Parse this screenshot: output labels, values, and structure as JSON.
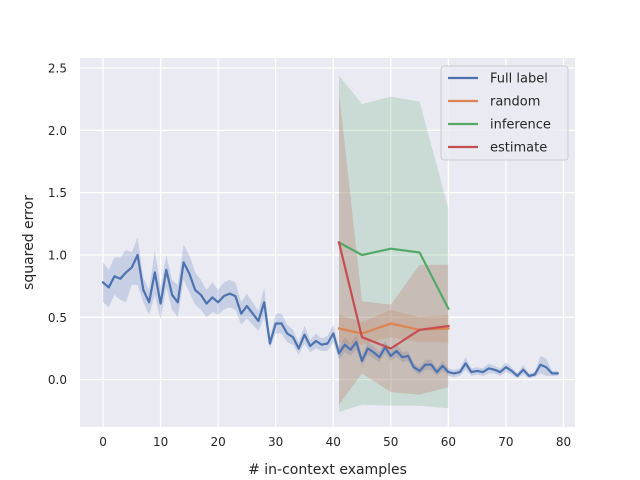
{
  "chart_data": {
    "type": "line",
    "xlabel": "# in-context examples",
    "ylabel": "squared error",
    "xlim": [
      -4,
      82
    ],
    "ylim": [
      -0.38,
      2.58
    ],
    "xticks": [
      0,
      10,
      20,
      30,
      40,
      50,
      60,
      70,
      80
    ],
    "yticks": [
      0.0,
      0.5,
      1.0,
      1.5,
      2.0,
      2.5
    ],
    "ytick_labels": [
      "0.0",
      "0.5",
      "1.0",
      "1.5",
      "2.0",
      "2.5"
    ],
    "grid": true,
    "legend_position": "top-right",
    "series": [
      {
        "name": "Full label",
        "color": "#4c72b0",
        "x": [
          0,
          1,
          2,
          3,
          4,
          5,
          6,
          7,
          8,
          9,
          10,
          11,
          12,
          13,
          14,
          15,
          16,
          17,
          18,
          19,
          20,
          21,
          22,
          23,
          24,
          25,
          26,
          27,
          28,
          29,
          30,
          31,
          32,
          33,
          34,
          35,
          36,
          37,
          38,
          39,
          40,
          41,
          42,
          43,
          44,
          45,
          46,
          47,
          48,
          49,
          50,
          51,
          52,
          53,
          54,
          55,
          56,
          57,
          58,
          59,
          60,
          61,
          62,
          63,
          64,
          65,
          66,
          67,
          68,
          69,
          70,
          71,
          72,
          73,
          74,
          75,
          76,
          77,
          78,
          79
        ],
        "y": [
          0.78,
          0.74,
          0.83,
          0.81,
          0.86,
          0.9,
          1.0,
          0.72,
          0.62,
          0.86,
          0.61,
          0.88,
          0.68,
          0.62,
          0.94,
          0.85,
          0.72,
          0.68,
          0.61,
          0.66,
          0.62,
          0.67,
          0.69,
          0.67,
          0.53,
          0.59,
          0.53,
          0.47,
          0.62,
          0.29,
          0.45,
          0.45,
          0.37,
          0.34,
          0.25,
          0.36,
          0.27,
          0.31,
          0.28,
          0.29,
          0.37,
          0.21,
          0.28,
          0.24,
          0.3,
          0.15,
          0.25,
          0.22,
          0.18,
          0.26,
          0.19,
          0.23,
          0.18,
          0.19,
          0.1,
          0.07,
          0.12,
          0.12,
          0.06,
          0.11,
          0.06,
          0.05,
          0.06,
          0.13,
          0.06,
          0.07,
          0.06,
          0.09,
          0.08,
          0.06,
          0.1,
          0.07,
          0.03,
          0.08,
          0.03,
          0.04,
          0.12,
          0.1,
          0.05,
          0.05
        ],
        "lower": [
          0.62,
          0.58,
          0.68,
          0.64,
          0.62,
          0.76,
          0.76,
          0.62,
          0.52,
          0.68,
          0.48,
          0.74,
          0.56,
          0.5,
          0.8,
          0.7,
          0.6,
          0.56,
          0.5,
          0.54,
          0.52,
          0.56,
          0.58,
          0.56,
          0.44,
          0.49,
          0.44,
          0.39,
          0.5,
          0.25,
          0.37,
          0.37,
          0.3,
          0.28,
          0.2,
          0.29,
          0.22,
          0.25,
          0.23,
          0.23,
          0.3,
          0.16,
          0.22,
          0.19,
          0.24,
          0.11,
          0.2,
          0.17,
          0.14,
          0.21,
          0.15,
          0.18,
          0.14,
          0.15,
          0.07,
          0.04,
          0.08,
          0.08,
          0.03,
          0.07,
          0.03,
          0.02,
          0.03,
          0.08,
          0.03,
          0.04,
          0.03,
          0.05,
          0.05,
          0.03,
          0.06,
          0.04,
          0.01,
          0.04,
          0.01,
          0.02,
          0.05,
          0.03,
          0.03,
          0.03
        ],
        "upper": [
          0.94,
          0.88,
          0.98,
          0.98,
          1.04,
          1.02,
          1.14,
          0.82,
          0.72,
          1.04,
          0.74,
          1.0,
          0.8,
          0.76,
          1.08,
          1.0,
          0.86,
          0.8,
          0.72,
          0.78,
          0.72,
          0.78,
          0.8,
          0.78,
          0.62,
          0.69,
          0.62,
          0.55,
          0.74,
          0.33,
          0.53,
          0.53,
          0.44,
          0.4,
          0.3,
          0.43,
          0.32,
          0.37,
          0.33,
          0.35,
          0.44,
          0.26,
          0.34,
          0.29,
          0.36,
          0.19,
          0.3,
          0.27,
          0.22,
          0.31,
          0.23,
          0.28,
          0.22,
          0.23,
          0.13,
          0.1,
          0.16,
          0.16,
          0.09,
          0.15,
          0.09,
          0.08,
          0.09,
          0.18,
          0.09,
          0.1,
          0.09,
          0.13,
          0.11,
          0.09,
          0.14,
          0.1,
          0.05,
          0.12,
          0.05,
          0.06,
          0.19,
          0.17,
          0.07,
          0.07
        ]
      },
      {
        "name": "random",
        "color": "#dd8452",
        "x": [
          41,
          45,
          50,
          55,
          60
        ],
        "y": [
          0.41,
          0.37,
          0.45,
          0.4,
          0.41
        ],
        "lower": [
          0.3,
          0.28,
          0.34,
          0.3,
          0.3
        ],
        "upper": [
          0.52,
          0.46,
          0.56,
          0.5,
          0.52
        ]
      },
      {
        "name": "inference",
        "color": "#55a868",
        "x": [
          41,
          45,
          50,
          55,
          60
        ],
        "y": [
          1.1,
          1.0,
          1.05,
          1.02,
          0.57
        ],
        "lower": [
          -0.26,
          -0.2,
          -0.21,
          -0.21,
          -0.23
        ],
        "upper": [
          2.44,
          2.21,
          2.27,
          2.23,
          1.37
        ]
      },
      {
        "name": "estimate",
        "color": "#c44e52",
        "x": [
          41,
          45,
          50,
          55,
          60
        ],
        "y": [
          1.1,
          0.34,
          0.25,
          0.4,
          0.43
        ],
        "lower": [
          -0.2,
          0.05,
          -0.1,
          -0.12,
          -0.06
        ],
        "upper": [
          2.3,
          0.63,
          0.6,
          0.92,
          0.92
        ]
      }
    ]
  }
}
